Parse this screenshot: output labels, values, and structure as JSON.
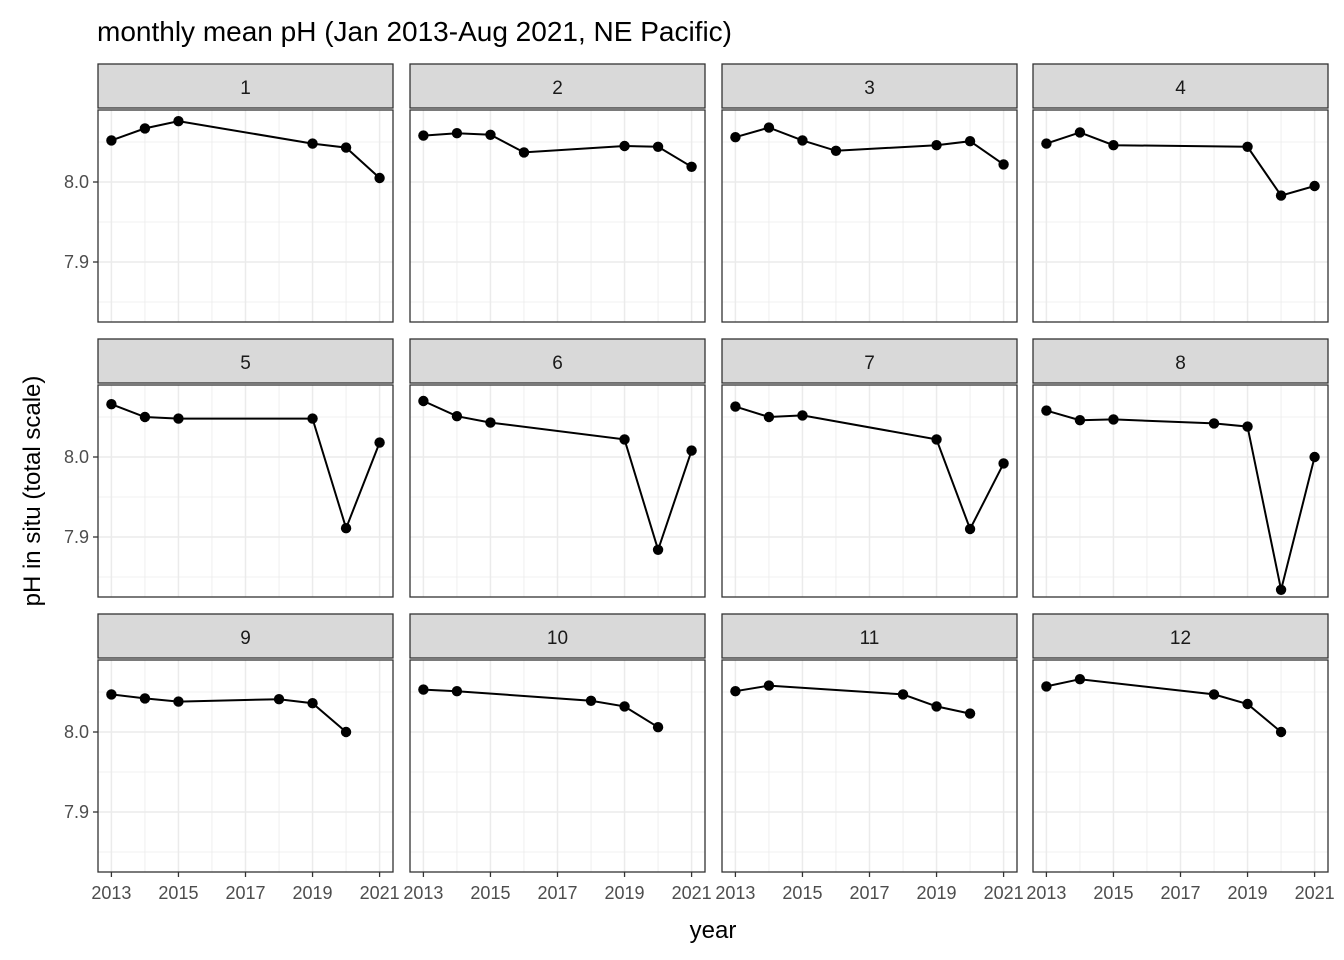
{
  "chart_data": {
    "type": "line",
    "title": "monthly mean pH (Jan 2013-Aug 2021, NE Pacific)",
    "xlabel": "year",
    "ylabel": "pH in situ (total scale)",
    "x_ticks": [
      "2013",
      "2015",
      "2017",
      "2019",
      "2021"
    ],
    "y_ticks": [
      "7.9",
      "8.0"
    ],
    "xlim": [
      2012.6,
      2021.4
    ],
    "ylim": [
      7.825,
      8.09
    ],
    "grid": true,
    "facets": [
      {
        "label": "1",
        "x": [
          2013,
          2014,
          2015,
          2019,
          2020,
          2021
        ],
        "y": [
          8.052,
          8.067,
          8.076,
          8.048,
          8.043,
          8.005
        ]
      },
      {
        "label": "2",
        "x": [
          2013,
          2014,
          2015,
          2016,
          2019,
          2020,
          2021
        ],
        "y": [
          8.058,
          8.061,
          8.059,
          8.037,
          8.045,
          8.044,
          8.019
        ]
      },
      {
        "label": "3",
        "x": [
          2013,
          2014,
          2015,
          2016,
          2019,
          2020,
          2021
        ],
        "y": [
          8.056,
          8.068,
          8.052,
          8.039,
          8.046,
          8.051,
          8.022
        ]
      },
      {
        "label": "4",
        "x": [
          2013,
          2014,
          2015,
          2019,
          2020,
          2021
        ],
        "y": [
          8.048,
          8.062,
          8.046,
          8.044,
          7.983,
          7.995
        ]
      },
      {
        "label": "5",
        "x": [
          2013,
          2014,
          2015,
          2019,
          2020,
          2021
        ],
        "y": [
          8.066,
          8.05,
          8.048,
          8.048,
          7.911,
          8.018
        ]
      },
      {
        "label": "6",
        "x": [
          2013,
          2014,
          2015,
          2019,
          2020,
          2021
        ],
        "y": [
          8.07,
          8.051,
          8.043,
          8.022,
          7.884,
          8.008
        ]
      },
      {
        "label": "7",
        "x": [
          2013,
          2014,
          2015,
          2019,
          2020,
          2021
        ],
        "y": [
          8.063,
          8.05,
          8.052,
          8.022,
          7.91,
          7.992
        ]
      },
      {
        "label": "8",
        "x": [
          2013,
          2014,
          2015,
          2018,
          2019,
          2020,
          2021
        ],
        "y": [
          8.058,
          8.046,
          8.047,
          8.042,
          8.038,
          7.834,
          8.0
        ]
      },
      {
        "label": "9",
        "x": [
          2013,
          2014,
          2015,
          2018,
          2019,
          2020
        ],
        "y": [
          8.047,
          8.042,
          8.038,
          8.041,
          8.036,
          8.0
        ]
      },
      {
        "label": "10",
        "x": [
          2013,
          2014,
          2018,
          2019,
          2020
        ],
        "y": [
          8.053,
          8.051,
          8.039,
          8.032,
          8.006
        ]
      },
      {
        "label": "11",
        "x": [
          2013,
          2014,
          2018,
          2019,
          2020
        ],
        "y": [
          8.051,
          8.058,
          8.047,
          8.032,
          8.023
        ]
      },
      {
        "label": "12",
        "x": [
          2013,
          2014,
          2018,
          2019,
          2020
        ],
        "y": [
          8.057,
          8.066,
          8.047,
          8.035,
          8.0
        ]
      }
    ]
  }
}
